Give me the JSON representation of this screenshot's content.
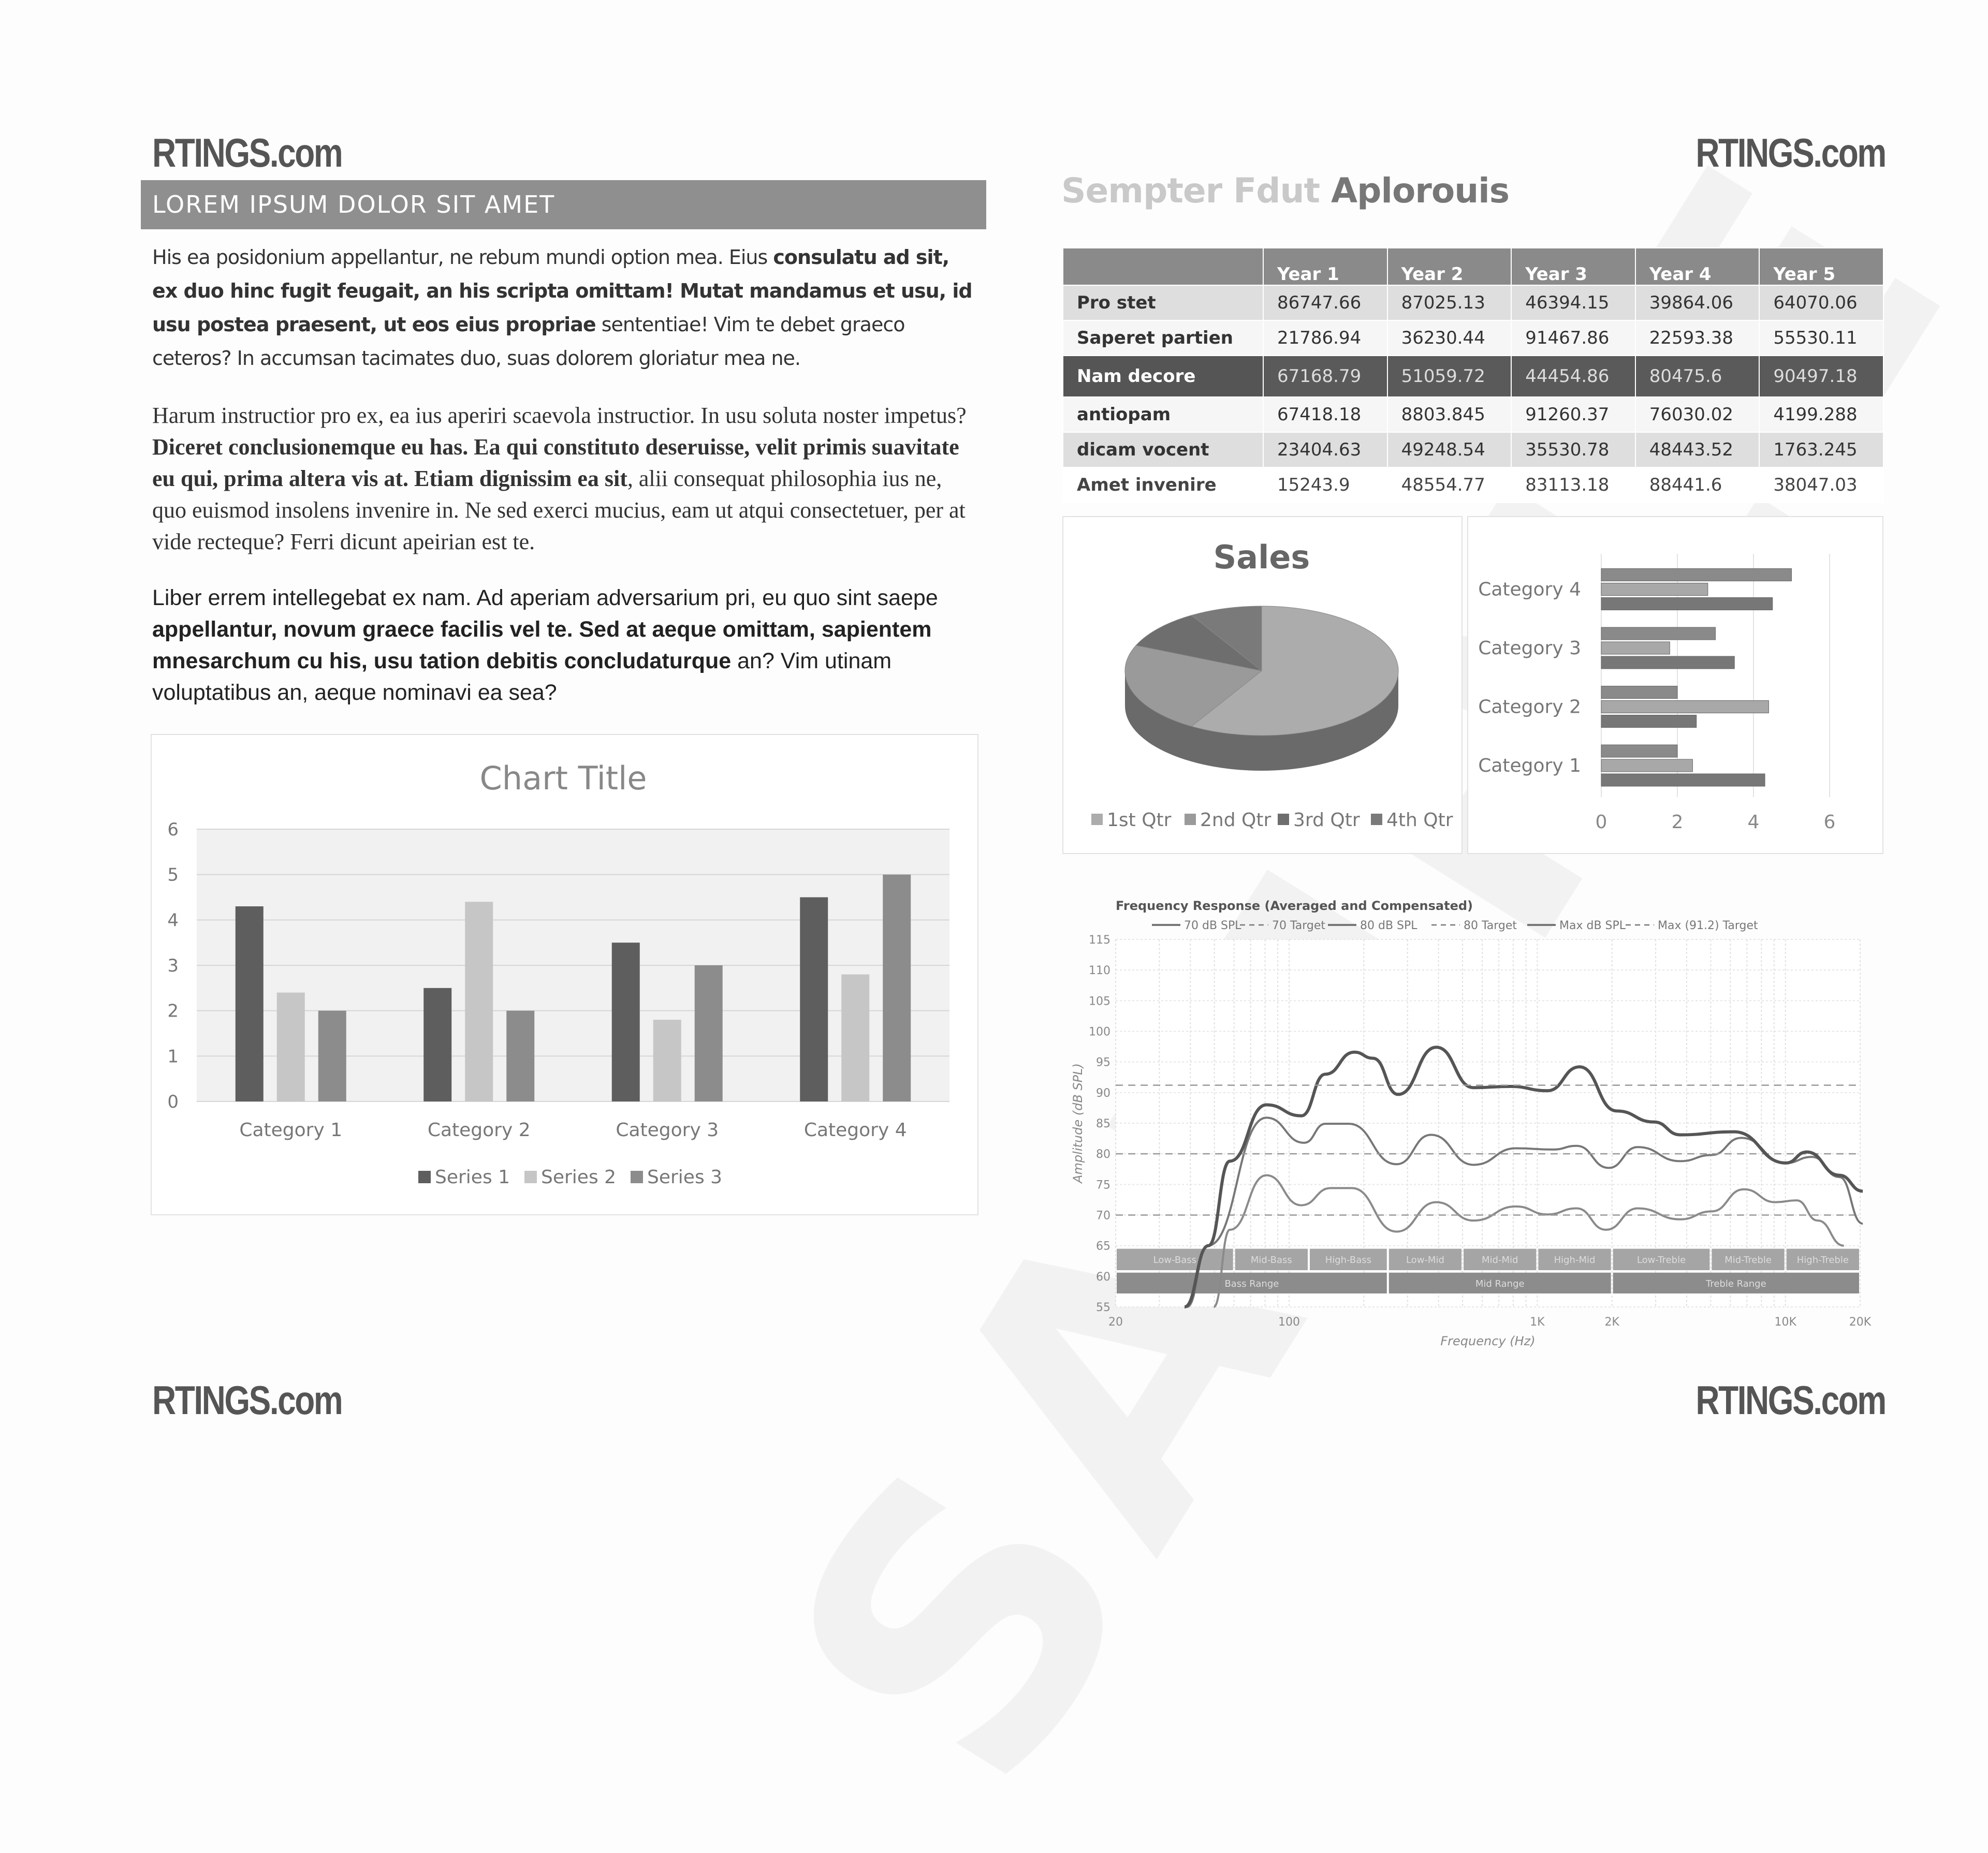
{
  "logos": {
    "top_left": "RTINGS.com",
    "top_right": "RTINGS.com",
    "bottom_left": "RTINGS.com",
    "bottom_right": "RTINGS.com"
  },
  "watermark": "SAMPLE",
  "left": {
    "header": "LOREM IPSUM DOLOR SIT AMET",
    "paragraphs": [
      [
        {
          "text": "His ea posidonium appellantur, ne rebum mundi option mea. Eius ",
          "bold": false
        },
        {
          "text": "consulatu ad sit, ex duo hinc fugit feugait, an his scripta omittam! Mutat mandamus et usu, id usu postea praesent, ut eos eius propriae",
          "bold": true
        },
        {
          "text": " sententiae! Vim te debet graeco ceteros? In accumsan tacimates duo, suas dolorem gloriatur mea ne.",
          "bold": false
        }
      ],
      [
        {
          "text": "Harum instructior pro ex, ea ius aperiri scaevola instructior. In usu soluta noster impetus? ",
          "bold": false
        },
        {
          "text": "Diceret conclusionemque eu has. Ea qui constituto deseruisse, velit primis suavitate eu qui, prima altera vis at. Etiam dignissim ea sit",
          "bold": true
        },
        {
          "text": ", alii consequat philosophia ius ne, quo euismod insolens invenire in. Ne sed exerci mucius, eam ut atqui consectetuer, per at vide recteque? Ferri dicunt apeirian est te.",
          "bold": false
        }
      ],
      [
        {
          "text": "Liber errem intellegebat ex nam. Ad aperiam adversarium pri, eu quo sint saepe ",
          "bold": false
        },
        {
          "text": "appellantur, novum graece facilis vel te. Sed at aeque omittam, sapientem mnesarchum cu his, usu tation debitis concludaturque",
          "bold": true
        },
        {
          "text": " an? Vim utinam voluptatibus an, aeque nominavi ea sea?",
          "bold": false
        }
      ]
    ]
  },
  "right": {
    "title_faded": "Sempter Fdut",
    "title_rest": " Aplorouis",
    "table": {
      "columns": [
        "",
        "Year 1",
        "Year 2",
        "Year 3",
        "Year 4",
        "Year 5"
      ],
      "rows": [
        {
          "label": "Pro stet",
          "values": [
            "86747.66",
            "87025.13",
            "46394.15",
            "39864.06",
            "64070.06"
          ]
        },
        {
          "label": "Saperet partien",
          "values": [
            "21786.94",
            "36230.44",
            "91467.86",
            "22593.38",
            "55530.11"
          ]
        },
        {
          "label": "Nam decore",
          "values": [
            "67168.79",
            "51059.72",
            "44454.86",
            "80475.6",
            "90497.18"
          ]
        },
        {
          "label": "antiopam",
          "values": [
            "67418.18",
            "8803.845",
            "91260.37",
            "76030.02",
            "4199.288"
          ]
        },
        {
          "label": "dicam vocent",
          "values": [
            "23404.63",
            "49248.54",
            "35530.78",
            "48443.52",
            "1763.245"
          ]
        },
        {
          "label": "Amet invenire",
          "values": [
            "15243.9",
            "48554.77",
            "83113.18",
            "88441.6",
            "38047.03"
          ]
        }
      ]
    }
  },
  "chart_data": [
    {
      "type": "bar",
      "title": "Chart Title",
      "categories": [
        "Category 1",
        "Category 2",
        "Category 3",
        "Category 4"
      ],
      "series": [
        {
          "name": "Series 1",
          "values": [
            4.3,
            2.5,
            3.5,
            4.5
          ],
          "color": "#5e5e5e"
        },
        {
          "name": "Series 2",
          "values": [
            2.4,
            4.4,
            1.8,
            2.8
          ],
          "color": "#c6c6c6"
        },
        {
          "name": "Series 3",
          "values": [
            2,
            2,
            3,
            5
          ],
          "color": "#8c8c8c"
        }
      ],
      "ylim": [
        0,
        6
      ],
      "yticks": [
        "0",
        "1",
        "2",
        "3",
        "4",
        "5",
        "6"
      ],
      "grid": true,
      "legend": "bottom"
    },
    {
      "type": "pie",
      "title": "Sales",
      "categories": [
        "1st Qtr",
        "2nd Qtr",
        "3rd Qtr",
        "4th Qtr"
      ],
      "values": [
        8.2,
        3.2,
        1.4,
        1.2
      ],
      "colors": [
        "#acacac",
        "#9a9a9a",
        "#6e6e6e",
        "#7a7a7a"
      ],
      "legend": "bottom"
    },
    {
      "type": "bar",
      "orientation": "horizontal",
      "categories": [
        "Category 1",
        "Category 2",
        "Category 3",
        "Category 4"
      ],
      "series": [
        {
          "values": [
            4.3,
            2.5,
            3.5,
            4.5
          ],
          "color": "#777777"
        },
        {
          "values": [
            2.4,
            4.4,
            1.8,
            2.8
          ],
          "color": "#a8a8a8"
        },
        {
          "values": [
            2,
            2,
            3,
            5
          ],
          "color": "#8a8a8a"
        }
      ],
      "xlim": [
        0,
        6
      ],
      "xticks": [
        "0",
        "2",
        "4",
        "6"
      ],
      "grid": true
    },
    {
      "type": "line",
      "title": "Frequency Response (Averaged and Compensated)",
      "xlabel": "Frequency (Hz)",
      "ylabel": "Amplitude (dB SPL)",
      "xscale": "log",
      "xlim": [
        20,
        20000
      ],
      "ylim": [
        55,
        115
      ],
      "xticks": [
        {
          "v": 20,
          "label": "20"
        },
        {
          "v": 100,
          "label": "100"
        },
        {
          "v": 1000,
          "label": "1K"
        },
        {
          "v": 2000,
          "label": "2K"
        },
        {
          "v": 10000,
          "label": "10K"
        },
        {
          "v": 20000,
          "label": "20K"
        }
      ],
      "yticks": [
        55,
        60,
        65,
        70,
        75,
        80,
        85,
        90,
        95,
        100,
        105,
        110,
        115
      ],
      "legend_labels": [
        "70 dB SPL",
        "70 Target",
        "80 dB SPL",
        "80 Target",
        "Max dB SPL",
        "Max (91.2) Target"
      ],
      "series": [
        {
          "name": "70 dB SPL",
          "style": "solid",
          "color": "#8a8a8a",
          "points": [
            [
              49.7,
              55
            ],
            [
              57.7,
              67.6
            ],
            [
              81,
              76.5
            ],
            [
              112,
              71.6
            ],
            [
              147,
              74.4
            ],
            [
              179,
              74.4
            ],
            [
              271,
              67.3
            ],
            [
              392,
              72.1
            ],
            [
              554,
              69.1
            ],
            [
              821,
              71.4
            ],
            [
              1100,
              70.1
            ],
            [
              1440,
              71.1
            ],
            [
              1890,
              67.6
            ],
            [
              2540,
              71.1
            ],
            [
              3770,
              69.3
            ],
            [
              5040,
              70.6
            ],
            [
              6800,
              74.2
            ],
            [
              9120,
              72.1
            ],
            [
              11100,
              72.4
            ],
            [
              13500,
              69.1
            ],
            [
              17200,
              65
            ]
          ]
        },
        {
          "name": "70 Target",
          "style": "dashed",
          "color": "#999999",
          "points": [
            [
              20,
              70
            ],
            [
              20000,
              70
            ]
          ]
        },
        {
          "name": "80 dB SPL",
          "style": "solid",
          "color": "#777777",
          "points": [
            [
              38.8,
              55
            ],
            [
              47,
              65
            ],
            [
              81,
              85.9
            ],
            [
              115,
              81.8
            ],
            [
              140,
              84.9
            ],
            [
              174,
              84.9
            ],
            [
              271,
              78.3
            ],
            [
              373,
              83.1
            ],
            [
              554,
              78.2
            ],
            [
              821,
              80.9
            ],
            [
              1160,
              80.7
            ],
            [
              1440,
              81.3
            ],
            [
              1940,
              77.7
            ],
            [
              2540,
              81.1
            ],
            [
              3770,
              78.8
            ],
            [
              5040,
              79.8
            ],
            [
              6640,
              82.6
            ],
            [
              10040,
              78.5
            ],
            [
              12800,
              79.5
            ],
            [
              16500,
              76.2
            ],
            [
              21500,
              68.6
            ]
          ]
        },
        {
          "name": "80 Target",
          "style": "dashed",
          "color": "#999999",
          "points": [
            [
              20,
              80
            ],
            [
              20000,
              80
            ]
          ]
        },
        {
          "name": "Max dB SPL",
          "style": "solid",
          "color": "#555555",
          "points": [
            [
              37.9,
              55
            ],
            [
              47.3,
              65
            ],
            [
              57.7,
              78.8
            ],
            [
              81,
              88
            ],
            [
              112,
              86.2
            ],
            [
              140,
              93
            ],
            [
              183,
              96.6
            ],
            [
              218,
              95.6
            ],
            [
              275,
              89.7
            ],
            [
              392,
              97.4
            ],
            [
              554,
              90.8
            ],
            [
              780,
              91
            ],
            [
              1100,
              90.3
            ],
            [
              1480,
              94.2
            ],
            [
              2090,
              87
            ],
            [
              2950,
              85.2
            ],
            [
              3770,
              83.1
            ],
            [
              6200,
              83.6
            ],
            [
              10040,
              78.5
            ],
            [
              12200,
              80.3
            ],
            [
              16500,
              76.5
            ],
            [
              21000,
              73.9
            ]
          ]
        },
        {
          "name": "Max (91.2) Target",
          "style": "dashed",
          "color": "#999999",
          "points": [
            [
              20,
              91.2
            ],
            [
              20000,
              91.2
            ]
          ]
        }
      ],
      "bands": [
        {
          "label": "Low-Bass",
          "from": 20,
          "to": 60
        },
        {
          "label": "Mid-Bass",
          "from": 60,
          "to": 120
        },
        {
          "label": "High-Bass",
          "from": 120,
          "to": 250
        },
        {
          "label": "Low-Mid",
          "from": 250,
          "to": 500
        },
        {
          "label": "Mid-Mid",
          "from": 500,
          "to": 1000
        },
        {
          "label": "High-Mid",
          "from": 1000,
          "to": 2000
        },
        {
          "label": "Low-Treble",
          "from": 2000,
          "to": 5000
        },
        {
          "label": "Mid-Treble",
          "from": 5000,
          "to": 10000
        },
        {
          "label": "High-Treble",
          "from": 10000,
          "to": 20000
        }
      ],
      "ranges": [
        {
          "label": "Bass Range",
          "from": 20,
          "to": 250
        },
        {
          "label": "Mid Range",
          "from": 250,
          "to": 2000
        },
        {
          "label": "Treble Range",
          "from": 2000,
          "to": 20000
        }
      ]
    }
  ]
}
